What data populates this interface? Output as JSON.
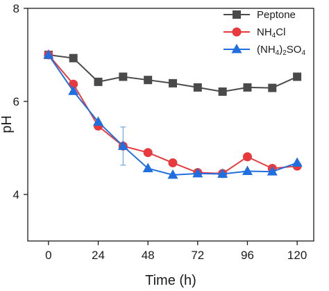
{
  "chart_data": {
    "type": "line",
    "xlabel": "Time (h)",
    "ylabel": "pH",
    "xlim": [
      -10,
      128
    ],
    "ylim": [
      3,
      8
    ],
    "xticks": [
      0,
      24,
      48,
      72,
      96,
      120
    ],
    "xtick_labels": [
      "0",
      "24",
      "48",
      "72",
      "96",
      "120"
    ],
    "yticks": [
      4,
      6,
      8
    ],
    "ytick_labels": [
      "4",
      "6",
      "8"
    ],
    "grid": false,
    "legend_position": "top-right",
    "series": [
      {
        "name": "Peptone",
        "label_parts": [
          {
            "t": "Peptone",
            "sub": false
          }
        ],
        "color": "#4a4a4a",
        "marker": "square",
        "x": [
          0,
          12,
          24,
          36,
          48,
          60,
          72,
          84,
          96,
          108,
          120
        ],
        "y": [
          7.0,
          6.93,
          6.42,
          6.53,
          6.46,
          6.39,
          6.3,
          6.21,
          6.3,
          6.29,
          6.53
        ]
      },
      {
        "name": "NH4Cl",
        "label_parts": [
          {
            "t": "NH",
            "sub": false
          },
          {
            "t": "4",
            "sub": true
          },
          {
            "t": "Cl",
            "sub": false
          }
        ],
        "color": "#e8393c",
        "marker": "circle",
        "x": [
          0,
          12,
          24,
          36,
          48,
          60,
          72,
          84,
          96,
          108,
          120
        ],
        "y": [
          7.0,
          6.37,
          5.47,
          5.04,
          4.9,
          4.68,
          4.47,
          4.45,
          4.81,
          4.56,
          4.61
        ]
      },
      {
        "name": "(NH4)2SO4",
        "label_parts": [
          {
            "t": "(NH",
            "sub": false
          },
          {
            "t": "4",
            "sub": true
          },
          {
            "t": ")",
            "sub": false
          },
          {
            "t": "2",
            "sub": true
          },
          {
            "t": "SO",
            "sub": false
          },
          {
            "t": "4",
            "sub": true
          }
        ],
        "color": "#1f6fe0",
        "marker": "triangle",
        "x": [
          0,
          12,
          24,
          36,
          48,
          60,
          72,
          84,
          96,
          108,
          120
        ],
        "y": [
          7.0,
          6.22,
          5.56,
          5.04,
          4.56,
          4.42,
          4.45,
          4.44,
          4.5,
          4.49,
          4.68
        ]
      }
    ],
    "error_bars": [
      {
        "series": "(NH4)2SO4",
        "x": 36,
        "low": 4.63,
        "high": 5.45,
        "color": "#6fa8e8"
      }
    ]
  }
}
